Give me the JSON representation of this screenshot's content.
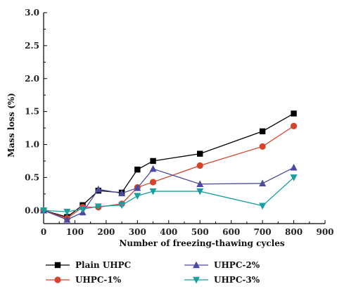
{
  "chart_data": {
    "type": "line",
    "xlabel": "Number of freezing-thawing cycles",
    "ylabel": "Mass loss (%)",
    "xlim": [
      0,
      900
    ],
    "ylim": [
      -0.2,
      3.0
    ],
    "xticks": [
      0,
      100,
      200,
      300,
      400,
      500,
      600,
      700,
      800,
      900
    ],
    "yticks": [
      0.0,
      0.5,
      1.0,
      1.5,
      2.0,
      2.5,
      3.0
    ],
    "ytick_labels": [
      "0.0",
      "0.5",
      "1.0",
      "1.5",
      "2.0",
      "2.5",
      "3.0"
    ],
    "grid": false,
    "legend_position": "bottom",
    "series": [
      {
        "name": "Plain UHPC",
        "color": "#000000",
        "marker": "square",
        "x": [
          0,
          75,
          125,
          175,
          250,
          300,
          350,
          500,
          700,
          800
        ],
        "y": [
          0.0,
          -0.1,
          0.08,
          0.3,
          0.27,
          0.62,
          0.75,
          0.86,
          1.2,
          1.47
        ]
      },
      {
        "name": "UHPC-1%",
        "color": "#d4452c",
        "marker": "circle",
        "x": [
          0,
          75,
          125,
          175,
          250,
          300,
          350,
          500,
          700,
          800
        ],
        "y": [
          0.0,
          -0.12,
          0.05,
          0.05,
          0.1,
          0.35,
          0.43,
          0.68,
          0.97,
          1.28
        ]
      },
      {
        "name": "UHPC-2%",
        "color": "#4a4aa0",
        "marker": "triangle-up",
        "x": [
          0,
          75,
          125,
          175,
          250,
          300,
          350,
          500,
          700,
          800
        ],
        "y": [
          0.0,
          -0.14,
          -0.03,
          0.32,
          0.26,
          0.34,
          0.63,
          0.4,
          0.41,
          0.65
        ]
      },
      {
        "name": "UHPC-3%",
        "color": "#1a9e9e",
        "marker": "triangle-down",
        "x": [
          0,
          75,
          125,
          175,
          250,
          300,
          350,
          500,
          700,
          800
        ],
        "y": [
          0.0,
          -0.02,
          0.02,
          0.06,
          0.08,
          0.22,
          0.29,
          0.29,
          0.07,
          0.5
        ]
      }
    ]
  }
}
